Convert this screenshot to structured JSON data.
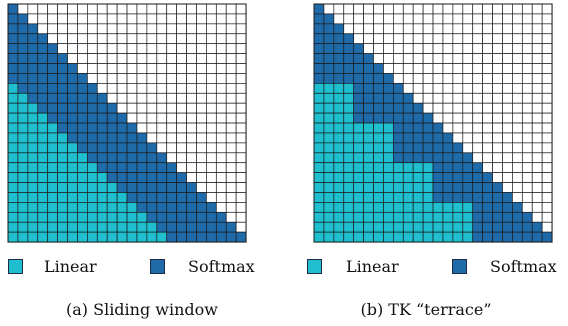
{
  "colors": {
    "linear": "#1fbfcf",
    "softmax": "#1f6aa8",
    "empty": "#ffffff",
    "gridline": "#1a1a1a"
  },
  "grid_size": 24,
  "legend": {
    "linear_label": "Linear",
    "softmax_label": "Softmax"
  },
  "panels": [
    {
      "id": "a",
      "caption": "(a) Sliding window",
      "softmax_band": "sliding",
      "window": 8
    },
    {
      "id": "b",
      "caption": "(b) TK “terrace”",
      "softmax_band": "terrace",
      "block": 4
    }
  ]
}
